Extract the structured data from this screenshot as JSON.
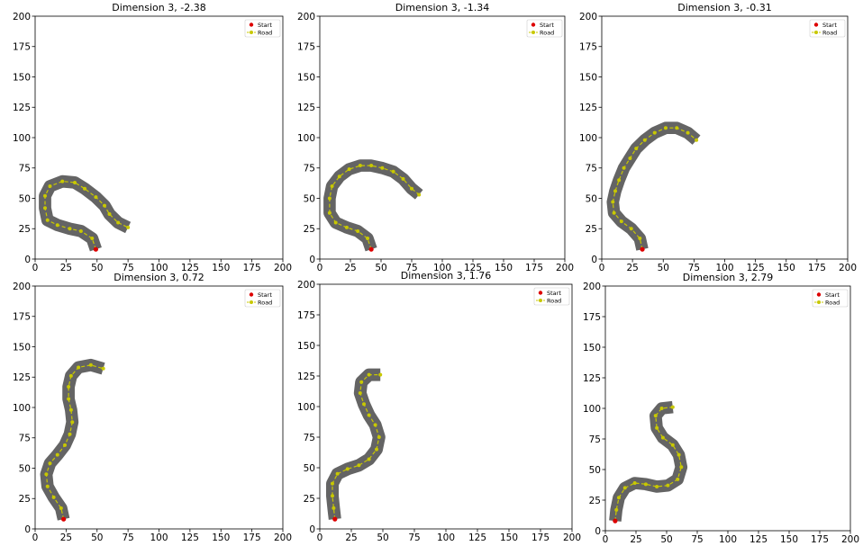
{
  "chart_data": [
    {
      "type": "line",
      "title": "Dimension 3, -2.38",
      "xlim": [
        0,
        200
      ],
      "ylim": [
        0,
        200
      ],
      "xticks": [
        0,
        25,
        50,
        75,
        100,
        125,
        150,
        175,
        200
      ],
      "yticks": [
        0,
        25,
        50,
        75,
        100,
        125,
        150,
        175,
        200
      ],
      "legend": {
        "placement": "top-right",
        "entries": [
          "Start",
          "Road"
        ]
      },
      "start": [
        49,
        8
      ],
      "road": [
        [
          49,
          8
        ],
        [
          46,
          17
        ],
        [
          37,
          23
        ],
        [
          28,
          25
        ],
        [
          18,
          28
        ],
        [
          10,
          32
        ],
        [
          8,
          42
        ],
        [
          8,
          52
        ],
        [
          12,
          60
        ],
        [
          22,
          64
        ],
        [
          32,
          63
        ],
        [
          40,
          58
        ],
        [
          49,
          51
        ],
        [
          56,
          44
        ],
        [
          60,
          37
        ],
        [
          67,
          30
        ],
        [
          75,
          26
        ]
      ]
    },
    {
      "type": "line",
      "title": "Dimension 3, -1.34",
      "xlim": [
        0,
        200
      ],
      "ylim": [
        0,
        200
      ],
      "xticks": [
        0,
        25,
        50,
        75,
        100,
        125,
        150,
        175,
        200
      ],
      "yticks": [
        0,
        25,
        50,
        75,
        100,
        125,
        150,
        175,
        200
      ],
      "legend": {
        "placement": "top-right",
        "entries": [
          "Start",
          "Road"
        ]
      },
      "start": [
        42,
        8
      ],
      "road": [
        [
          42,
          8
        ],
        [
          39,
          17
        ],
        [
          31,
          23
        ],
        [
          22,
          26
        ],
        [
          13,
          30
        ],
        [
          8,
          38
        ],
        [
          8,
          50
        ],
        [
          10,
          60
        ],
        [
          16,
          68
        ],
        [
          24,
          74
        ],
        [
          33,
          77
        ],
        [
          42,
          77
        ],
        [
          51,
          75
        ],
        [
          60,
          72
        ],
        [
          68,
          66
        ],
        [
          75,
          58
        ],
        [
          81,
          53
        ]
      ]
    },
    {
      "type": "line",
      "title": "Dimension 3, -0.31",
      "xlim": [
        0,
        200
      ],
      "ylim": [
        0,
        200
      ],
      "xticks": [
        0,
        25,
        50,
        75,
        100,
        125,
        150,
        175,
        200
      ],
      "yticks": [
        0,
        25,
        50,
        75,
        100,
        125,
        150,
        175,
        200
      ],
      "legend": {
        "placement": "top-right",
        "entries": [
          "Start",
          "Road"
        ]
      },
      "start": [
        33,
        8
      ],
      "road": [
        [
          33,
          8
        ],
        [
          31,
          17
        ],
        [
          24,
          25
        ],
        [
          16,
          31
        ],
        [
          10,
          38
        ],
        [
          9,
          47
        ],
        [
          11,
          56
        ],
        [
          14,
          65
        ],
        [
          18,
          75
        ],
        [
          23,
          83
        ],
        [
          28,
          91
        ],
        [
          35,
          98
        ],
        [
          43,
          104
        ],
        [
          52,
          108
        ],
        [
          61,
          108
        ],
        [
          70,
          104
        ],
        [
          77,
          98
        ]
      ]
    },
    {
      "type": "line",
      "title": "Dimension 3, 0.72",
      "xlim": [
        0,
        200
      ],
      "ylim": [
        0,
        200
      ],
      "xticks": [
        0,
        25,
        50,
        75,
        100,
        125,
        150,
        175,
        200
      ],
      "yticks": [
        0,
        25,
        50,
        75,
        100,
        125,
        150,
        175,
        200
      ],
      "legend": {
        "placement": "top-right",
        "entries": [
          "Start",
          "Road"
        ]
      },
      "start": [
        23,
        8
      ],
      "road": [
        [
          23,
          8
        ],
        [
          21,
          17
        ],
        [
          15,
          26
        ],
        [
          10,
          35
        ],
        [
          9,
          45
        ],
        [
          12,
          54
        ],
        [
          18,
          61
        ],
        [
          24,
          69
        ],
        [
          28,
          78
        ],
        [
          30,
          88
        ],
        [
          29,
          98
        ],
        [
          27,
          107
        ],
        [
          27,
          117
        ],
        [
          29,
          126
        ],
        [
          35,
          133
        ],
        [
          45,
          135
        ],
        [
          55,
          132
        ]
      ]
    },
    {
      "type": "line",
      "title": "Dimension 3, 1.76",
      "xlim": [
        0,
        200
      ],
      "ylim": [
        0,
        200
      ],
      "xticks": [
        0,
        25,
        50,
        75,
        100,
        125,
        150,
        175,
        200
      ],
      "yticks": [
        0,
        25,
        50,
        75,
        100,
        125,
        150,
        175,
        200
      ],
      "legend": {
        "placement": "top-right",
        "entries": [
          "Start",
          "Road"
        ]
      },
      "start": [
        12,
        8
      ],
      "road": [
        [
          12,
          8
        ],
        [
          11,
          17
        ],
        [
          10,
          27
        ],
        [
          10,
          37
        ],
        [
          14,
          45
        ],
        [
          22,
          49
        ],
        [
          31,
          52
        ],
        [
          39,
          57
        ],
        [
          45,
          65
        ],
        [
          47,
          75
        ],
        [
          44,
          85
        ],
        [
          39,
          93
        ],
        [
          35,
          102
        ],
        [
          32,
          111
        ],
        [
          33,
          120
        ],
        [
          39,
          126
        ],
        [
          48,
          126
        ]
      ]
    },
    {
      "type": "line",
      "title": "Dimension 3, 2.79",
      "xlim": [
        0,
        200
      ],
      "ylim": [
        0,
        200
      ],
      "xticks": [
        0,
        25,
        50,
        75,
        100,
        125,
        150,
        175,
        200
      ],
      "yticks": [
        0,
        25,
        50,
        75,
        100,
        125,
        150,
        175,
        200
      ],
      "legend": {
        "placement": "top-right",
        "entries": [
          "Start",
          "Road"
        ]
      },
      "start": [
        8,
        8
      ],
      "road": [
        [
          8,
          8
        ],
        [
          9,
          17
        ],
        [
          11,
          27
        ],
        [
          16,
          35
        ],
        [
          24,
          39
        ],
        [
          33,
          38
        ],
        [
          42,
          36
        ],
        [
          51,
          37
        ],
        [
          59,
          42
        ],
        [
          62,
          52
        ],
        [
          60,
          62
        ],
        [
          55,
          70
        ],
        [
          47,
          76
        ],
        [
          42,
          84
        ],
        [
          41,
          94
        ],
        [
          46,
          100
        ],
        [
          55,
          101
        ]
      ]
    }
  ]
}
